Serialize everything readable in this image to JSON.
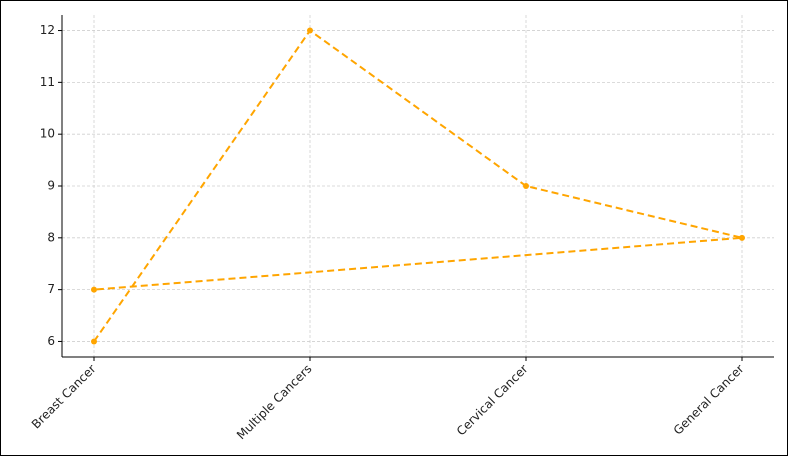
{
  "chart_data": {
    "type": "line",
    "categories": [
      "Breast Cancer",
      "Multiple Cancers",
      "Cervical Cancer",
      "General Cancer"
    ],
    "series": [
      {
        "color": "#ffa500",
        "x": [
          "Breast Cancer",
          "Multiple Cancers",
          "Cervical Cancer",
          "General Cancer",
          "Breast Cancer"
        ],
        "values": [
          6,
          12,
          9,
          8,
          7
        ]
      }
    ],
    "ylim": [
      5.7,
      12.3
    ],
    "yticks": [
      6,
      7,
      8,
      9,
      10,
      11,
      12
    ],
    "grid": true,
    "line_style": "dashed"
  }
}
